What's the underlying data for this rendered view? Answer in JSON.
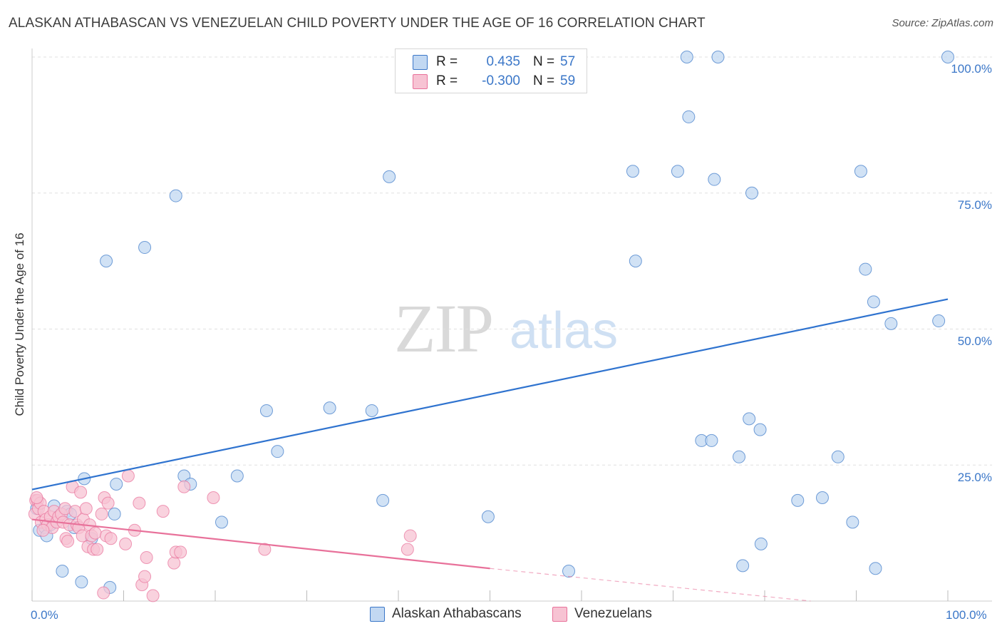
{
  "title": "ALASKAN ATHABASCAN VS VENEZUELAN CHILD POVERTY UNDER THE AGE OF 16 CORRELATION CHART",
  "source": "Source: ZipAtlas.com",
  "watermark": {
    "zip": "ZIP",
    "atlas": "atlas"
  },
  "colors": {
    "blue": "#3b77c8",
    "blue_fill": "#c2d8f2",
    "blue_line": "#2f73cf",
    "pink_fill": "#f7c3d3",
    "pink_line": "#e8719a",
    "grid": "#e0e0e0"
  },
  "legend": {
    "rows": [
      {
        "r_label": "R =",
        "r_value": "0.435",
        "n_label": "N =",
        "n_value": "57"
      },
      {
        "r_label": "R =",
        "r_value": "-0.300",
        "n_label": "N =",
        "n_value": "59"
      }
    ]
  },
  "bottom_legend": [
    "Alaskan Athabascans",
    "Venezuelans"
  ],
  "chart_data": {
    "type": "scatter",
    "title": "ALASKAN ATHABASCAN VS VENEZUELAN CHILD POVERTY UNDER THE AGE OF 16 CORRELATION CHART",
    "xlabel": "",
    "ylabel": "Child Poverty Under the Age of 16",
    "xlim": [
      0,
      100
    ],
    "ylim": [
      0,
      100
    ],
    "x_tick_labels": [
      "0.0%",
      "100.0%"
    ],
    "y_tick_labels": [
      "25.0%",
      "50.0%",
      "75.0%",
      "100.0%"
    ],
    "y_tick_values": [
      25,
      50,
      75,
      100
    ],
    "series": [
      {
        "name": "Alaskan Athabascans",
        "color": "#3b77c8",
        "r": 0.435,
        "n": 57,
        "trend": {
          "x0": 0,
          "y0": 20.5,
          "x1": 100,
          "y1": 55.5,
          "dashed_from": null
        },
        "points": [
          [
            0.8,
            13.0
          ],
          [
            1.4,
            13.5
          ],
          [
            1.6,
            12.0
          ],
          [
            2.4,
            17.5
          ],
          [
            3.3,
            5.5
          ],
          [
            3.8,
            16.5
          ],
          [
            4.2,
            16.0
          ],
          [
            4.6,
            13.5
          ],
          [
            5.4,
            3.5
          ],
          [
            5.7,
            22.5
          ],
          [
            6.5,
            11.5
          ],
          [
            8.1,
            62.5
          ],
          [
            8.5,
            2.5
          ],
          [
            9.0,
            16.0
          ],
          [
            9.2,
            21.5
          ],
          [
            12.3,
            65.0
          ],
          [
            15.7,
            74.5
          ],
          [
            16.6,
            23.0
          ],
          [
            17.3,
            21.5
          ],
          [
            20.7,
            14.5
          ],
          [
            22.4,
            23.0
          ],
          [
            25.6,
            35.0
          ],
          [
            26.8,
            27.5
          ],
          [
            32.5,
            35.5
          ],
          [
            37.1,
            35.0
          ],
          [
            38.3,
            18.5
          ],
          [
            39.0,
            78.0
          ],
          [
            49.8,
            15.5
          ],
          [
            58.6,
            5.5
          ],
          [
            65.6,
            79.0
          ],
          [
            65.9,
            62.5
          ],
          [
            70.5,
            79.0
          ],
          [
            71.5,
            100.0
          ],
          [
            71.7,
            89.0
          ],
          [
            73.1,
            29.5
          ],
          [
            74.2,
            29.5
          ],
          [
            74.5,
            77.5
          ],
          [
            74.9,
            100.0
          ],
          [
            77.2,
            26.5
          ],
          [
            77.6,
            6.5
          ],
          [
            78.3,
            33.5
          ],
          [
            78.6,
            75.0
          ],
          [
            79.5,
            31.5
          ],
          [
            79.6,
            10.5
          ],
          [
            83.6,
            18.5
          ],
          [
            86.3,
            19.0
          ],
          [
            88.0,
            26.5
          ],
          [
            89.6,
            14.5
          ],
          [
            90.5,
            79.0
          ],
          [
            91.0,
            61.0
          ],
          [
            91.9,
            55.0
          ],
          [
            92.1,
            6.0
          ],
          [
            93.8,
            51.0
          ],
          [
            99.0,
            51.5
          ],
          [
            100.0,
            100.0
          ],
          [
            0.5,
            17.0
          ],
          [
            2.0,
            14.0
          ]
        ]
      },
      {
        "name": "Venezuelans",
        "color": "#e8719a",
        "r": -0.3,
        "n": 59,
        "trend": {
          "x0": 0,
          "y0": 15.0,
          "x1": 100,
          "y1": -3.0,
          "solid_until": 50
        },
        "points": [
          [
            0.3,
            16.0
          ],
          [
            0.4,
            18.5
          ],
          [
            0.6,
            18.5
          ],
          [
            0.7,
            17.0
          ],
          [
            0.9,
            18.0
          ],
          [
            1.0,
            14.5
          ],
          [
            1.3,
            16.5
          ],
          [
            1.5,
            15.0
          ],
          [
            1.7,
            14.0
          ],
          [
            2.0,
            15.5
          ],
          [
            2.2,
            13.5
          ],
          [
            2.4,
            16.5
          ],
          [
            2.7,
            14.5
          ],
          [
            2.9,
            15.5
          ],
          [
            3.2,
            16.0
          ],
          [
            3.4,
            14.5
          ],
          [
            3.6,
            17.0
          ],
          [
            3.7,
            11.5
          ],
          [
            3.9,
            11.0
          ],
          [
            4.1,
            14.0
          ],
          [
            4.4,
            21.0
          ],
          [
            4.7,
            16.5
          ],
          [
            4.9,
            14.0
          ],
          [
            5.1,
            13.5
          ],
          [
            5.3,
            20.0
          ],
          [
            5.5,
            12.0
          ],
          [
            5.6,
            15.0
          ],
          [
            5.9,
            17.0
          ],
          [
            6.1,
            10.0
          ],
          [
            6.3,
            14.0
          ],
          [
            6.5,
            12.0
          ],
          [
            6.7,
            9.5
          ],
          [
            6.9,
            12.5
          ],
          [
            7.1,
            9.5
          ],
          [
            7.6,
            16.0
          ],
          [
            7.9,
            19.0
          ],
          [
            8.1,
            12.0
          ],
          [
            8.3,
            18.0
          ],
          [
            8.6,
            11.5
          ],
          [
            10.2,
            10.5
          ],
          [
            10.5,
            23.0
          ],
          [
            11.2,
            13.0
          ],
          [
            11.7,
            18.0
          ],
          [
            12.0,
            3.0
          ],
          [
            12.3,
            4.5
          ],
          [
            12.5,
            8.0
          ],
          [
            13.2,
            1.0
          ],
          [
            14.3,
            16.5
          ],
          [
            15.5,
            7.0
          ],
          [
            15.7,
            9.0
          ],
          [
            16.2,
            9.0
          ],
          [
            16.6,
            21.0
          ],
          [
            19.8,
            19.0
          ],
          [
            25.4,
            9.5
          ],
          [
            41.0,
            9.5
          ],
          [
            41.3,
            12.0
          ],
          [
            7.8,
            1.5
          ],
          [
            0.5,
            19.0
          ],
          [
            1.2,
            13.0
          ]
        ]
      }
    ]
  }
}
